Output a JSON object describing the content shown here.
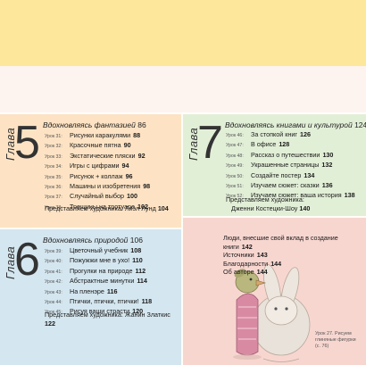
{
  "chapter5": {
    "glava": "Глава",
    "number": "5",
    "title": "Вдохновляясь фантазией",
    "page": "86",
    "items": [
      {
        "lesson": "Урок 31:",
        "label": "Рисунки каракулями",
        "page": "88"
      },
      {
        "lesson": "Урок 32:",
        "label": "Красочные пятна",
        "page": "90"
      },
      {
        "lesson": "Урок 33:",
        "label": "Экстатические пляски",
        "page": "92"
      },
      {
        "lesson": "Урок 34:",
        "label": "Игры с цифрами",
        "page": "94"
      },
      {
        "lesson": "Урок 35:",
        "label": "Рисунок + коллаж",
        "page": "96"
      },
      {
        "lesson": "Урок 36:",
        "label": "Машины и изобретения",
        "page": "98"
      },
      {
        "lesson": "Урок 37:",
        "label": "Случайный выбор",
        "page": "100"
      },
      {
        "lesson": "Урок 38:",
        "label": "Трещины на тротуаре",
        "page": "102"
      }
    ],
    "artist": "Представляем художника: Лиэл Лунд",
    "artist_page": "104"
  },
  "chapter6": {
    "glava": "Глава",
    "number": "6",
    "title": "Вдохновляясь природой",
    "page": "106",
    "items": [
      {
        "lesson": "Урок 39:",
        "label": "Цветочный учебник",
        "page": "108"
      },
      {
        "lesson": "Урок 40:",
        "label": "Пожужжи мне в ухо!",
        "page": "110"
      },
      {
        "lesson": "Урок 41:",
        "label": "Прогулки на природе",
        "page": "112"
      },
      {
        "lesson": "Урок 42:",
        "label": "Абстрактные минутки",
        "page": "114"
      },
      {
        "lesson": "Урок 43:",
        "label": "На пленэре",
        "page": "116"
      },
      {
        "lesson": "Урок 44:",
        "label": "Птички, птички, птички!",
        "page": "118"
      },
      {
        "lesson": "Урок 45:",
        "label": "Рисуя ваши страсти",
        "page": "120"
      }
    ],
    "artist": "Представляем художника: Жанин Златкис",
    "artist_page": "122"
  },
  "chapter7": {
    "glava": "Глава",
    "number": "7",
    "title": "Вдохновляясь книгами и культурой",
    "page": "124",
    "items": [
      {
        "lesson": "Урок 46:",
        "label": "За стопкой книг",
        "page": "126"
      },
      {
        "lesson": "Урок 47:",
        "label": "В офисе",
        "page": "128"
      },
      {
        "lesson": "Урок 48:",
        "label": "Рассказ о путешествии",
        "page": "130"
      },
      {
        "lesson": "Урок 49:",
        "label": "Украшенные страницы",
        "page": "132"
      },
      {
        "lesson": "Урок 50:",
        "label": "Создайте постер",
        "page": "134"
      },
      {
        "lesson": "Урок 51:",
        "label": "Изучаем сюжет: сказки",
        "page": "136"
      },
      {
        "lesson": "Урок 52:",
        "label": "Изучаем сюжет: ваша история",
        "page": "138"
      }
    ],
    "artist": "Представляем художника:",
    "artist_name": "Дженни Костецки-Шоу",
    "artist_page": "140"
  },
  "back_matter": [
    {
      "label": "Люди, внесшие свой вклад в создание",
      "page": ""
    },
    {
      "label": "книги",
      "page": "142"
    },
    {
      "label": "Источники",
      "page": "143"
    },
    {
      "label": "Благодарности",
      "page": "144"
    },
    {
      "label": "Об авторе",
      "page": "144"
    }
  ],
  "caption": {
    "line1": "Урок 27. Рисуем",
    "line2": "глиняные фигурки",
    "line3": "(с. 76)"
  },
  "colors": {
    "top_band": "#fde79a",
    "chapter5": "#fde3c4",
    "chapter6": "#d4e6ef",
    "chapter7": "#e2efd7",
    "back": "#f8d6d0"
  }
}
